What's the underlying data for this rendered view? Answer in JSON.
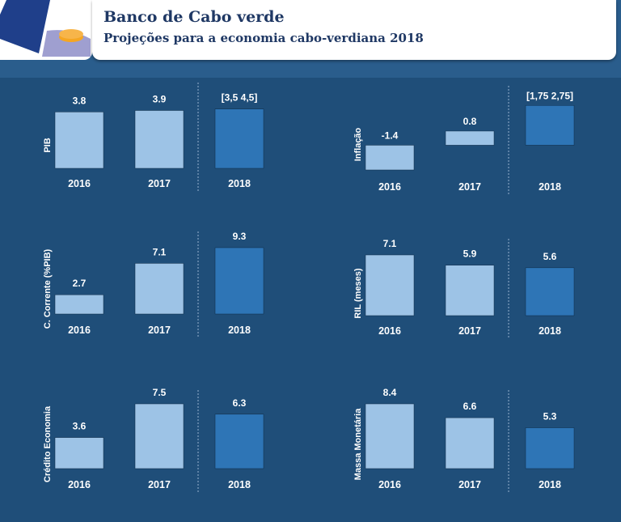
{
  "header": {
    "title": "Banco de Cabo verde",
    "subtitle": "Projeções para a economia cabo-verdiana 2018"
  },
  "colors": {
    "background": "#1f4e79",
    "historic_bar": "#9dc3e6",
    "projection_bar": "#2e75b6",
    "header_text": "#1f3864"
  },
  "chart_data": [
    {
      "type": "bar",
      "ylabel": "PIB",
      "categories": [
        "2016",
        "2017",
        "2018"
      ],
      "values": [
        3.8,
        3.9,
        4.0
      ],
      "value_labels": [
        "3.8",
        "3.9",
        "[3,5  4,5]"
      ],
      "ylim": [
        0,
        4.2
      ],
      "projection_range": [
        3.5,
        4.5
      ]
    },
    {
      "type": "bar",
      "ylabel": "Inflação",
      "categories": [
        "2016",
        "2017",
        "2018"
      ],
      "values": [
        -1.4,
        0.8,
        2.25
      ],
      "value_labels": [
        "-1.4",
        "0.8",
        "[1,75  2,75]"
      ],
      "ylim": [
        -1.4,
        2.4
      ],
      "projection_range": [
        1.75,
        2.75
      ]
    },
    {
      "type": "bar",
      "ylabel": "C. Corrente (%PIB)",
      "categories": [
        "2016",
        "2017",
        "2018"
      ],
      "values": [
        2.7,
        7.1,
        9.3
      ],
      "value_labels": [
        "2.7",
        "7.1",
        "9.3"
      ],
      "ylim": [
        0,
        9.3
      ]
    },
    {
      "type": "bar",
      "ylabel": "RIL (meses)",
      "categories": [
        "2016",
        "2017",
        "2018"
      ],
      "values": [
        7.1,
        5.9,
        5.6
      ],
      "value_labels": [
        "7.1",
        "5.9",
        "5.6"
      ],
      "ylim": [
        0,
        7.1
      ]
    },
    {
      "type": "bar",
      "ylabel": "Crédito Economia",
      "categories": [
        "2016",
        "2017",
        "2018"
      ],
      "values": [
        3.6,
        7.5,
        6.3
      ],
      "value_labels": [
        "3.6",
        "7.5",
        "6.3"
      ],
      "ylim": [
        0,
        7.5
      ]
    },
    {
      "type": "bar",
      "ylabel": "Massa Monetária",
      "categories": [
        "2016",
        "2017",
        "2018"
      ],
      "values": [
        8.4,
        6.6,
        5.3
      ],
      "value_labels": [
        "8.4",
        "6.6",
        "5.3"
      ],
      "ylim": [
        0,
        8.4
      ]
    }
  ]
}
